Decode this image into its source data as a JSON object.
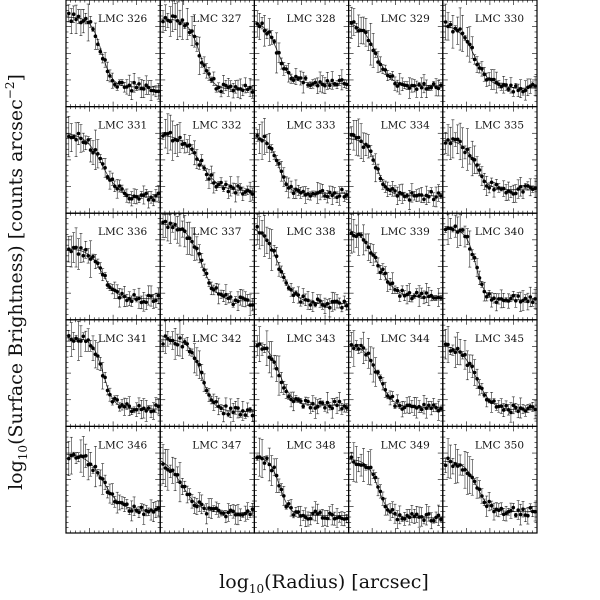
{
  "figure": {
    "ylabel": "log10(Surface Brightness) [counts arcsec^-2]",
    "xlabel": "log10(Radius) [arcsec]"
  },
  "chart_data": {
    "type": "scatter",
    "layout": "5x5 grid of small multiples",
    "panel_labels": [
      "LMC 326",
      "LMC 327",
      "LMC 328",
      "LMC 329",
      "LMC 330",
      "LMC 331",
      "LMC 332",
      "LMC 333",
      "LMC 334",
      "LMC 335",
      "LMC 336",
      "LMC 337",
      "LMC 338",
      "LMC 339",
      "LMC 340",
      "LMC 341",
      "LMC 342",
      "LMC 343",
      "LMC 344",
      "LMC 345",
      "LMC 346",
      "LMC 347",
      "LMC 348",
      "LMC 349",
      "LMC 350"
    ],
    "xlabel": "log10(Radius) [arcsec]",
    "ylabel": "log10(Surface Brightness) [counts arcsec^-2]",
    "colors": {
      "points": "#000000",
      "fit": "#333333",
      "frame": "#000000"
    }
  }
}
